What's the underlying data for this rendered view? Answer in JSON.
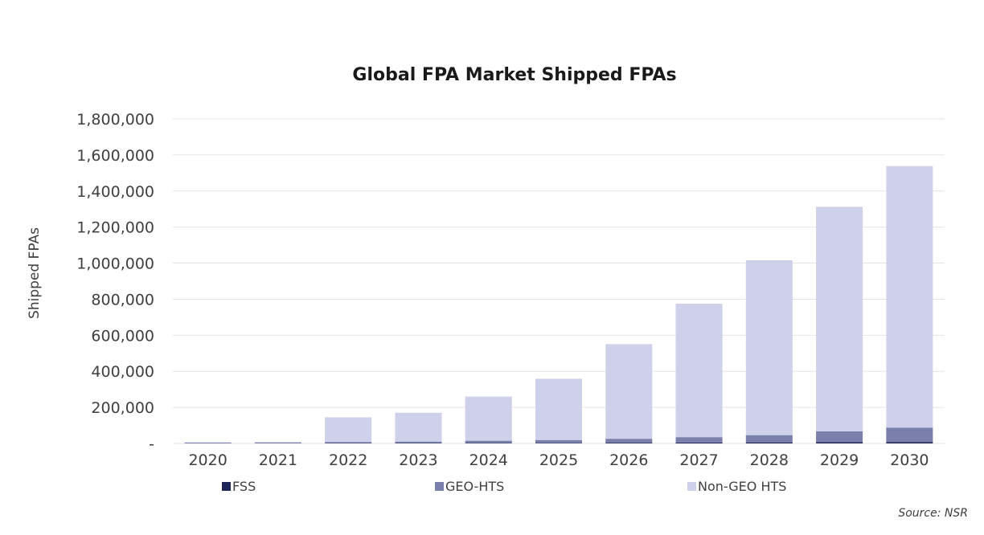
{
  "chart_data": {
    "type": "bar",
    "stacked": true,
    "title": "Global FPA Market Shipped FPAs",
    "xlabel": "",
    "ylabel": "Shipped FPAs",
    "ylim": [
      0,
      1800000
    ],
    "yticks": [
      0,
      200000,
      400000,
      600000,
      800000,
      1000000,
      1200000,
      1400000,
      1600000,
      1800000
    ],
    "ytick_labels": [
      "-",
      "200,000",
      "400,000",
      "600,000",
      "800,000",
      "1,000,000",
      "1,200,000",
      "1,400,000",
      "1,600,000",
      "1,800,000"
    ],
    "grid": true,
    "legend_position": "bottom",
    "categories": [
      "2020",
      "2021",
      "2022",
      "2023",
      "2024",
      "2025",
      "2026",
      "2027",
      "2028",
      "2029",
      "2030"
    ],
    "series": [
      {
        "name": "FSS",
        "color": "#1f2557",
        "values": [
          1000,
          1000,
          2000,
          2000,
          3000,
          3000,
          4000,
          5000,
          6000,
          7000,
          8000
        ]
      },
      {
        "name": "GEO-HTS",
        "color": "#7b7fab",
        "values": [
          4000,
          5000,
          6000,
          8000,
          12000,
          16000,
          22000,
          30000,
          40000,
          60000,
          80000
        ]
      },
      {
        "name": "Non-GEO HTS",
        "color": "#cfd1ea",
        "values": [
          0,
          0,
          137000,
          160000,
          245000,
          340000,
          525000,
          740000,
          970000,
          1245000,
          1450000
        ]
      }
    ],
    "source": "Source: NSR"
  }
}
